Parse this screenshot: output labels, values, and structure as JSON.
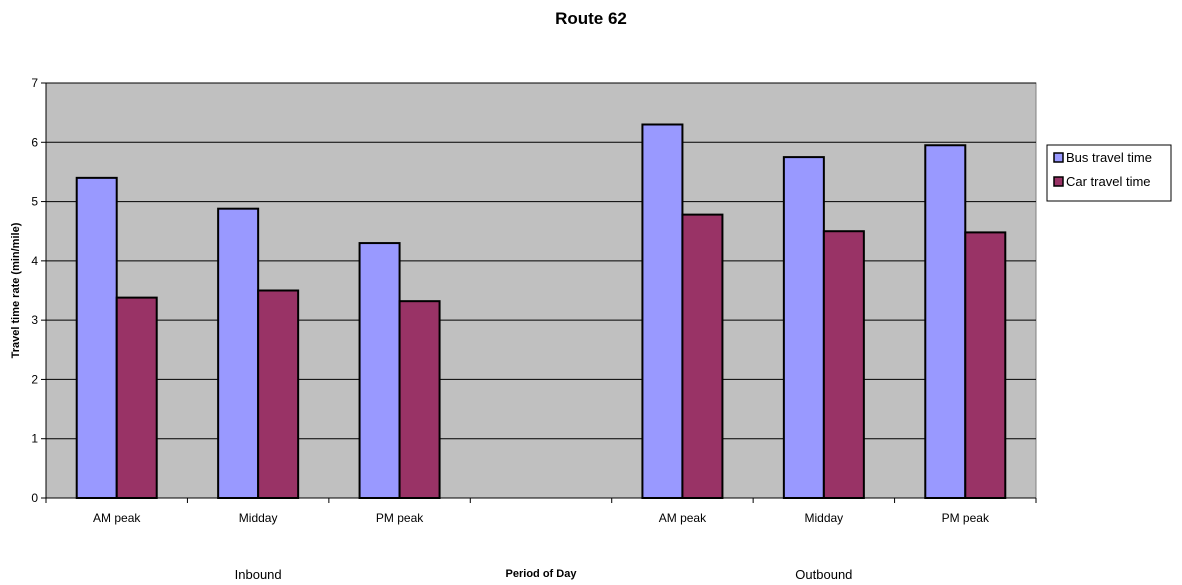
{
  "chart_data": {
    "type": "bar",
    "title": "Route 62",
    "xlabel": "Period of Day",
    "ylabel": "Travel time rate (min/mile)",
    "ylim": [
      0,
      7
    ],
    "yticks": [
      "0",
      "1",
      "2",
      "3",
      "4",
      "5",
      "6",
      "7"
    ],
    "grid": true,
    "legend_position": "right",
    "categories": [
      "AM peak",
      "Midday",
      "PM peak",
      "",
      "AM peak",
      "Midday",
      "PM peak"
    ],
    "groups": [
      {
        "label": "Inbound",
        "categories": [
          "AM peak",
          "Midday",
          "PM peak"
        ]
      },
      {
        "label": "Outbound",
        "categories": [
          "AM peak",
          "Midday",
          "PM peak"
        ]
      }
    ],
    "series": [
      {
        "name": "Bus travel time",
        "color": "#9999ff",
        "values": [
          5.4,
          4.88,
          4.3,
          null,
          6.3,
          5.75,
          5.95
        ]
      },
      {
        "name": "Car travel time",
        "color": "#993366",
        "values": [
          3.38,
          3.5,
          3.32,
          null,
          4.78,
          4.5,
          4.48
        ]
      }
    ],
    "plot_background": "#c0c0c0"
  }
}
